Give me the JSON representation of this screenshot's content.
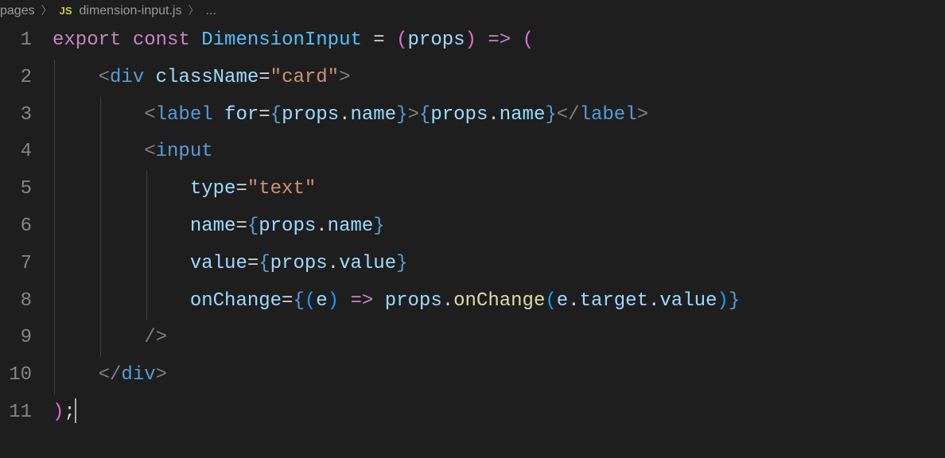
{
  "breadcrumb": {
    "folder": "pages",
    "file": "dimension-input.js",
    "symbol": "...",
    "js_badge": "JS"
  },
  "colors": {
    "background": "#1e1e1e",
    "gutter": "#858585",
    "guide": "#404040",
    "keyword": "#c586c0",
    "function": "#dcdcaa",
    "variable": "#4fc1ff",
    "param": "#9cdcfe",
    "punct": "#808080",
    "tag": "#569cd6",
    "attr": "#9cdcfe",
    "string": "#ce9178",
    "brace": "#569cd6",
    "bracket1": "#da70d6",
    "bracket2": "#179fff",
    "default": "#d4d4d4"
  },
  "code": {
    "line_count": 11,
    "lines": [
      [
        [
          "kw",
          "export"
        ],
        [
          "white",
          " "
        ],
        [
          "kw",
          "const"
        ],
        [
          "white",
          " "
        ],
        [
          "var",
          "DimensionInput"
        ],
        [
          "white",
          " "
        ],
        [
          "op",
          "="
        ],
        [
          "white",
          " "
        ],
        [
          "brkt",
          "("
        ],
        [
          "param",
          "props"
        ],
        [
          "brkt",
          ")"
        ],
        [
          "white",
          " "
        ],
        [
          "kw",
          "=>"
        ],
        [
          "white",
          " "
        ],
        [
          "brkt",
          "("
        ]
      ],
      [
        [
          "white",
          "    "
        ],
        [
          "punc",
          "<"
        ],
        [
          "tag",
          "div"
        ],
        [
          "white",
          " "
        ],
        [
          "attr",
          "className"
        ],
        [
          "op",
          "="
        ],
        [
          "str",
          "\"card\""
        ],
        [
          "punc",
          ">"
        ]
      ],
      [
        [
          "white",
          "        "
        ],
        [
          "punc",
          "<"
        ],
        [
          "tag",
          "label"
        ],
        [
          "white",
          " "
        ],
        [
          "attr",
          "for"
        ],
        [
          "op",
          "="
        ],
        [
          "brace",
          "{"
        ],
        [
          "param",
          "props"
        ],
        [
          "white",
          "."
        ],
        [
          "param",
          "name"
        ],
        [
          "brace",
          "}"
        ],
        [
          "punc",
          ">"
        ],
        [
          "brace",
          "{"
        ],
        [
          "param",
          "props"
        ],
        [
          "white",
          "."
        ],
        [
          "param",
          "name"
        ],
        [
          "brace",
          "}"
        ],
        [
          "punc",
          "</"
        ],
        [
          "tag",
          "label"
        ],
        [
          "punc",
          ">"
        ]
      ],
      [
        [
          "white",
          "        "
        ],
        [
          "punc",
          "<"
        ],
        [
          "tag",
          "input"
        ]
      ],
      [
        [
          "white",
          "            "
        ],
        [
          "attr",
          "type"
        ],
        [
          "op",
          "="
        ],
        [
          "str",
          "\"text\""
        ]
      ],
      [
        [
          "white",
          "            "
        ],
        [
          "attr",
          "name"
        ],
        [
          "op",
          "="
        ],
        [
          "brace",
          "{"
        ],
        [
          "param",
          "props"
        ],
        [
          "white",
          "."
        ],
        [
          "param",
          "name"
        ],
        [
          "brace",
          "}"
        ]
      ],
      [
        [
          "white",
          "            "
        ],
        [
          "attr",
          "value"
        ],
        [
          "op",
          "="
        ],
        [
          "brace",
          "{"
        ],
        [
          "param",
          "props"
        ],
        [
          "white",
          "."
        ],
        [
          "param",
          "value"
        ],
        [
          "brace",
          "}"
        ]
      ],
      [
        [
          "white",
          "            "
        ],
        [
          "attr",
          "onChange"
        ],
        [
          "op",
          "="
        ],
        [
          "brace",
          "{"
        ],
        [
          "brkt2",
          "("
        ],
        [
          "param",
          "e"
        ],
        [
          "brkt2",
          ")"
        ],
        [
          "white",
          " "
        ],
        [
          "kw",
          "=>"
        ],
        [
          "white",
          " "
        ],
        [
          "param",
          "props"
        ],
        [
          "white",
          "."
        ],
        [
          "fn",
          "onChange"
        ],
        [
          "brkt2",
          "("
        ],
        [
          "param",
          "e"
        ],
        [
          "white",
          "."
        ],
        [
          "param",
          "target"
        ],
        [
          "white",
          "."
        ],
        [
          "param",
          "value"
        ],
        [
          "brkt2",
          ")"
        ],
        [
          "brace",
          "}"
        ]
      ],
      [
        [
          "white",
          "        "
        ],
        [
          "punc",
          "/>"
        ]
      ],
      [
        [
          "white",
          "    "
        ],
        [
          "punc",
          "</"
        ],
        [
          "tag",
          "div"
        ],
        [
          "punc",
          ">"
        ]
      ],
      [
        [
          "brkt",
          ")"
        ],
        [
          "white",
          ";"
        ]
      ]
    ],
    "indent_guides": [
      [],
      [
        0
      ],
      [
        0,
        1
      ],
      [
        0,
        1
      ],
      [
        0,
        1,
        2
      ],
      [
        0,
        1,
        2
      ],
      [
        0,
        1,
        2
      ],
      [
        0,
        1,
        2
      ],
      [
        0,
        1
      ],
      [
        0
      ],
      []
    ],
    "cursor_line": 11
  }
}
